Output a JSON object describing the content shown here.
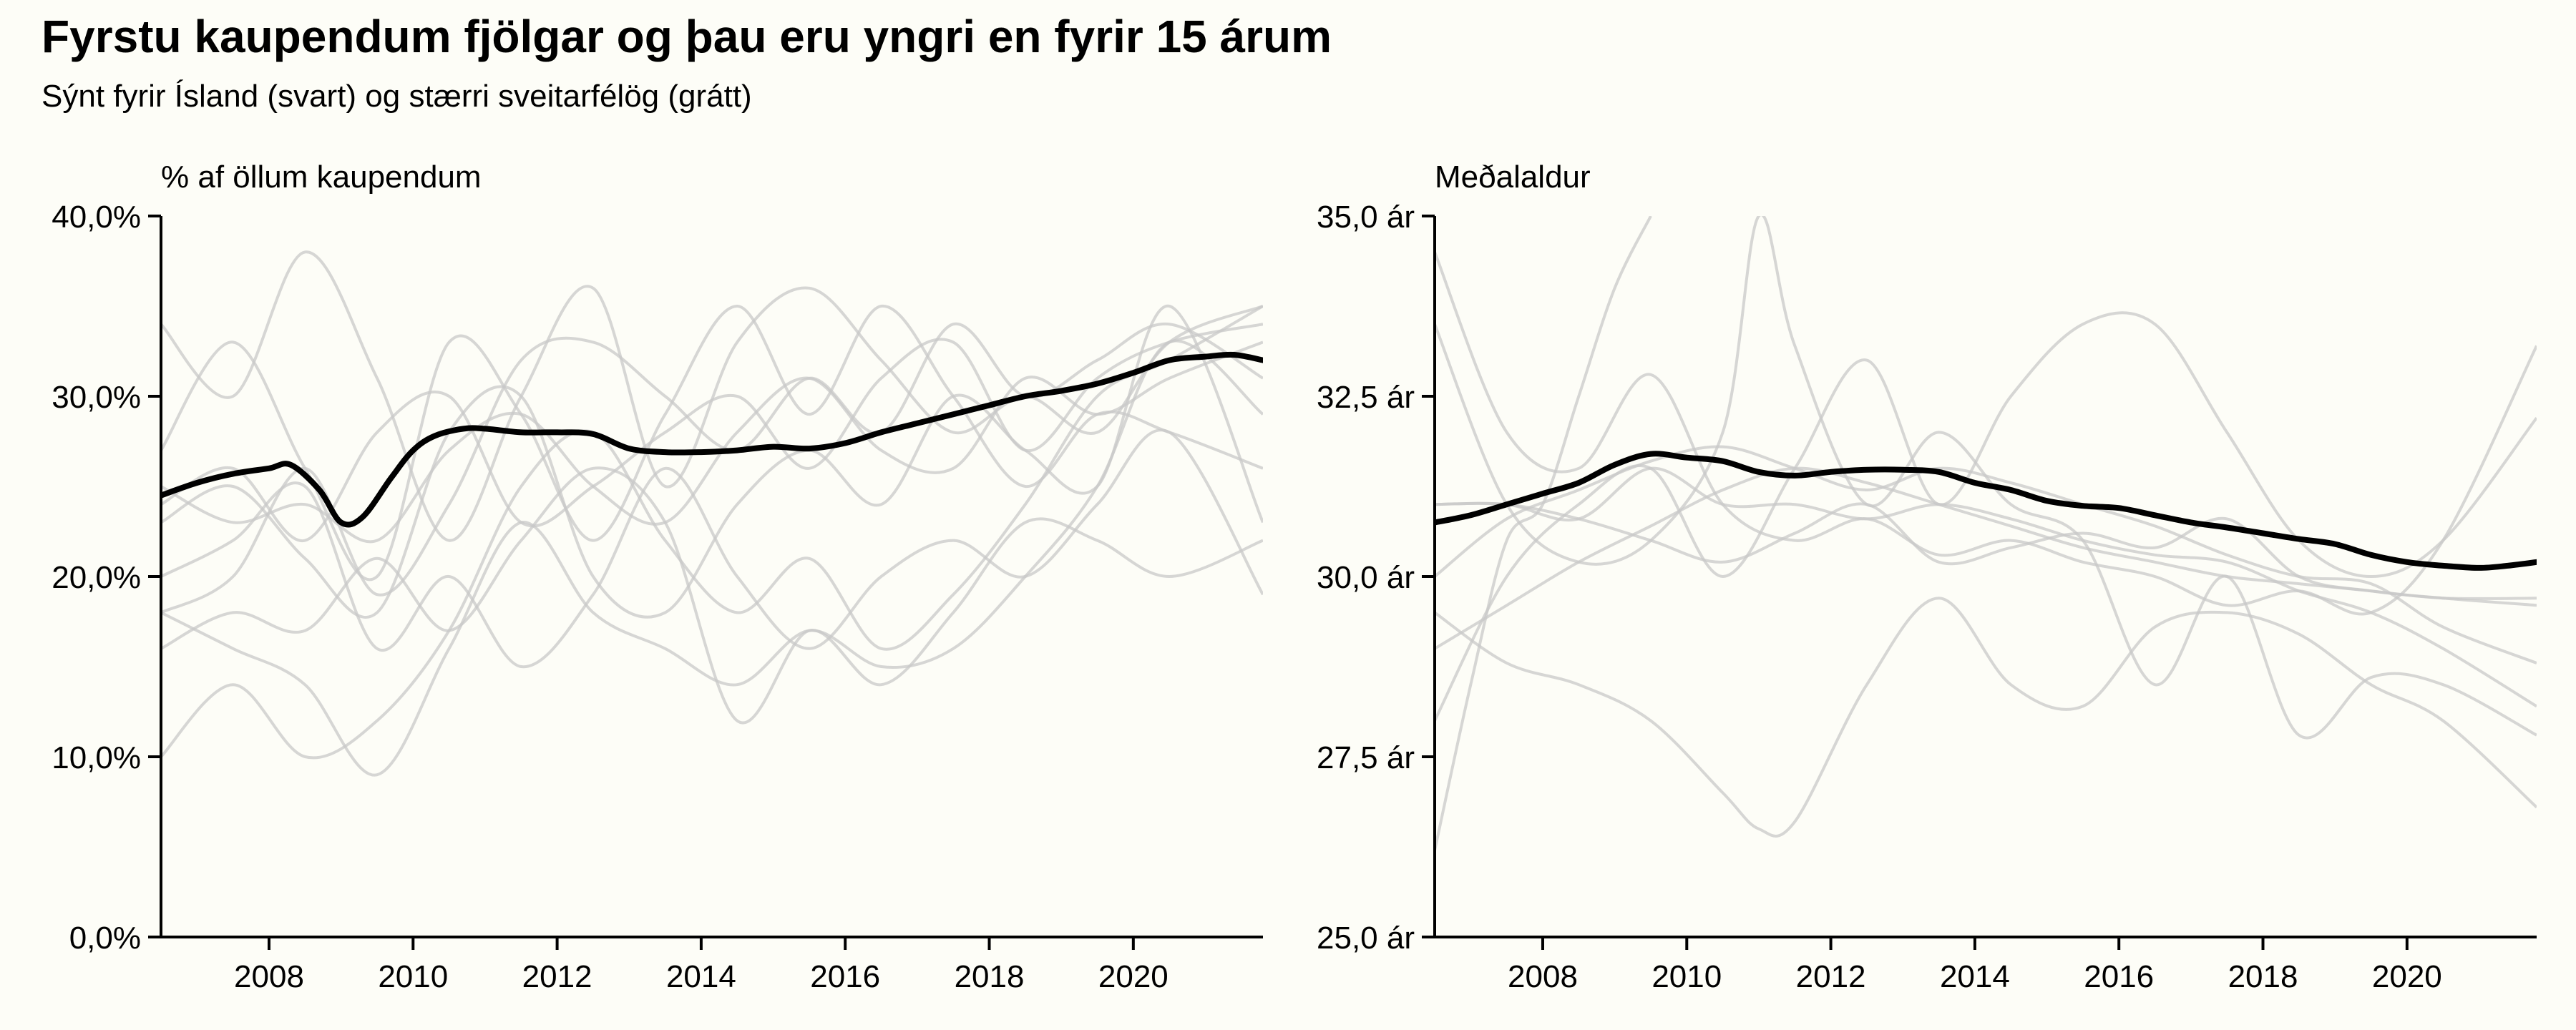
{
  "title": "Fyrstu kaupendum fjölgar og þau eru yngri en fyrir 15 árum",
  "subtitle": "Sýnt fyrir Ísland (svart) og stærri sveitarfélög (grátt)",
  "colors": {
    "highlight": "#000000",
    "context": "#c8c8c8",
    "background": "#fdfdf7"
  },
  "chart_data": [
    {
      "type": "line",
      "ylabel": "% af öllum kaupendum",
      "xlim": [
        2006.5,
        2021.8
      ],
      "ylim": [
        0,
        40
      ],
      "x_ticks": [
        2008,
        2010,
        2012,
        2014,
        2016,
        2018,
        2020
      ],
      "x_tick_labels": [
        "2008",
        "2010",
        "2012",
        "2014",
        "2016",
        "2018",
        "2020"
      ],
      "y_ticks": [
        0,
        10,
        20,
        30,
        40
      ],
      "y_tick_labels": [
        "0,0%",
        "10,0%",
        "20,0%",
        "30,0%",
        "40,0%"
      ],
      "grid": false,
      "highlight": {
        "x": [
          2006.5,
          2007.0,
          2007.5,
          2008.0,
          2008.3,
          2008.7,
          2009.0,
          2009.3,
          2009.7,
          2010.0,
          2010.3,
          2010.7,
          2011.0,
          2011.5,
          2012.0,
          2012.5,
          2013.0,
          2013.5,
          2014.0,
          2014.5,
          2015.0,
          2015.5,
          2016.0,
          2016.5,
          2017.0,
          2017.5,
          2018.0,
          2018.5,
          2019.0,
          2019.5,
          2020.0,
          2020.5,
          2021.0,
          2021.4,
          2021.8
        ],
        "y": [
          24.5,
          25.2,
          25.7,
          26.0,
          26.2,
          24.8,
          23.0,
          23.3,
          25.5,
          27.0,
          27.8,
          28.2,
          28.2,
          28.0,
          28.0,
          27.9,
          27.1,
          26.9,
          26.9,
          27.0,
          27.2,
          27.1,
          27.4,
          28.0,
          28.5,
          29.0,
          29.5,
          30.0,
          30.3,
          30.7,
          31.3,
          32.0,
          32.2,
          32.3,
          32.0
        ]
      },
      "context": [
        {
          "x": [
            2006.5,
            2007.5,
            2008.5,
            2009.5,
            2010.5,
            2011.5,
            2012.5,
            2013.5,
            2014.5,
            2015.5,
            2016.5,
            2017.5,
            2018.5,
            2019.5,
            2020.5,
            2021.8
          ],
          "y": [
            34,
            30,
            38,
            31,
            22,
            30,
            36,
            25,
            33,
            36,
            32,
            28,
            30,
            28,
            33,
            35
          ]
        },
        {
          "x": [
            2006.5,
            2007.5,
            2008.5,
            2009.5,
            2010.5,
            2011.5,
            2012.5,
            2013.5,
            2014.5,
            2015.5,
            2016.5,
            2017.5,
            2018.5,
            2019.5,
            2020.5,
            2021.8
          ],
          "y": [
            10,
            14,
            10,
            12,
            17,
            25,
            28,
            22,
            18,
            21,
            16,
            19,
            24,
            30,
            32,
            35
          ]
        },
        {
          "x": [
            2006.5,
            2007.5,
            2008.5,
            2009.5,
            2010.5,
            2011.5,
            2012.5,
            2013.5,
            2014.5,
            2015.5,
            2016.5,
            2017.5,
            2018.5,
            2019.5,
            2020.5,
            2021.8
          ],
          "y": [
            18,
            20,
            26,
            19,
            24,
            32,
            33,
            30,
            27,
            31,
            28,
            34,
            30,
            32,
            34,
            31
          ]
        },
        {
          "x": [
            2006.5,
            2007.5,
            2008.5,
            2009.5,
            2010.5,
            2011.5,
            2012.5,
            2013.5,
            2014.5,
            2015.5,
            2016.5,
            2017.5,
            2018.5,
            2019.5,
            2020.5,
            2021.8
          ],
          "y": [
            27,
            33,
            26,
            20,
            33,
            29,
            22,
            29,
            35,
            29,
            35,
            30,
            25,
            29,
            28,
            26
          ]
        },
        {
          "x": [
            2006.5,
            2007.5,
            2008.5,
            2009.5,
            2010.5,
            2011.5,
            2012.5,
            2013.5,
            2014.5,
            2015.5,
            2016.5,
            2017.5,
            2018.5,
            2019.5,
            2020.5,
            2021.8
          ],
          "y": [
            23,
            25,
            21,
            18,
            28,
            30,
            20,
            18,
            24,
            27,
            24,
            30,
            27,
            25,
            35,
            23
          ]
        },
        {
          "x": [
            2006.5,
            2007.5,
            2008.5,
            2009.5,
            2010.5,
            2011.5,
            2012.5,
            2013.5,
            2014.5,
            2015.5,
            2016.5,
            2017.5,
            2018.5,
            2019.5,
            2020.5,
            2021.8
          ],
          "y": [
            20,
            22,
            25,
            16,
            20,
            15,
            19,
            26,
            20,
            16,
            20,
            22,
            20,
            24,
            28,
            19
          ]
        },
        {
          "x": [
            2006.5,
            2007.5,
            2008.5,
            2009.5,
            2010.5,
            2011.5,
            2012.5,
            2013.5,
            2014.5,
            2015.5,
            2016.5,
            2017.5,
            2018.5,
            2019.5,
            2020.5,
            2021.8
          ],
          "y": [
            16,
            18,
            17,
            21,
            17,
            22,
            26,
            23,
            12,
            17,
            14,
            18,
            23,
            22,
            20,
            22
          ]
        },
        {
          "x": [
            2006.5,
            2007.5,
            2008.5,
            2009.5,
            2010.5,
            2011.5,
            2012.5,
            2013.5,
            2014.5,
            2015.5,
            2016.5,
            2017.5,
            2018.5,
            2019.5,
            2020.5,
            2021.8
          ],
          "y": [
            18,
            16,
            14,
            9,
            16,
            23,
            18,
            16,
            14,
            17,
            15,
            16,
            20,
            25,
            33,
            29
          ]
        },
        {
          "x": [
            2006.5,
            2007.5,
            2008.5,
            2009.5,
            2010.5,
            2011.5,
            2012.5,
            2013.5,
            2014.5,
            2015.5,
            2016.5,
            2017.5,
            2018.5,
            2019.5,
            2020.5,
            2021.8
          ],
          "y": [
            25,
            23,
            24,
            22,
            27,
            29,
            25,
            23,
            28,
            31,
            27,
            26,
            31,
            29,
            31,
            33
          ]
        },
        {
          "x": [
            2006.5,
            2007.5,
            2008.5,
            2009.5,
            2010.5,
            2011.5,
            2012.5,
            2013.5,
            2014.5,
            2015.5,
            2016.5,
            2017.5,
            2018.5,
            2019.5,
            2020.5,
            2021.8
          ],
          "y": [
            24,
            26,
            22,
            28,
            30,
            23,
            25,
            28,
            30,
            26,
            31,
            33,
            27,
            31,
            33,
            34
          ]
        }
      ]
    },
    {
      "type": "line",
      "ylabel": "Meðalaldur",
      "xlim": [
        2006.5,
        2021.8
      ],
      "ylim": [
        25,
        35
      ],
      "x_ticks": [
        2008,
        2010,
        2012,
        2014,
        2016,
        2018,
        2020
      ],
      "x_tick_labels": [
        "2008",
        "2010",
        "2012",
        "2014",
        "2016",
        "2018",
        "2020"
      ],
      "y_ticks": [
        25,
        27.5,
        30,
        32.5,
        35
      ],
      "y_tick_labels": [
        "25,0 ár",
        "27,5 ár",
        "30,0 ár",
        "32,5 ár",
        "35,0 ár"
      ],
      "grid": false,
      "highlight": {
        "x": [
          2006.5,
          2007.0,
          2007.5,
          2008.0,
          2008.5,
          2009.0,
          2009.5,
          2010.0,
          2010.5,
          2011.0,
          2011.5,
          2012.0,
          2012.5,
          2013.0,
          2013.5,
          2014.0,
          2014.5,
          2015.0,
          2015.5,
          2016.0,
          2016.5,
          2017.0,
          2017.5,
          2018.0,
          2018.5,
          2019.0,
          2019.5,
          2020.0,
          2020.5,
          2021.0,
          2021.4,
          2021.8
        ],
        "y": [
          30.75,
          30.85,
          31.0,
          31.15,
          31.3,
          31.55,
          31.7,
          31.65,
          31.6,
          31.45,
          31.4,
          31.45,
          31.48,
          31.48,
          31.45,
          31.3,
          31.2,
          31.05,
          30.98,
          30.95,
          30.85,
          30.75,
          30.68,
          30.6,
          30.52,
          30.45,
          30.3,
          30.2,
          30.15,
          30.12,
          30.15,
          30.2
        ]
      },
      "context": [
        {
          "x": [
            2006.5,
            2007.0,
            2007.5,
            2008.0,
            2008.5,
            2009.0,
            2009.5
          ],
          "y": [
            26.2,
            28.5,
            30.5,
            31.0,
            32.5,
            34.0,
            35.0
          ]
        },
        {
          "x": [
            2006.5,
            2007.5,
            2008.5,
            2009.5,
            2010.5,
            2011.5,
            2012.5,
            2013.5,
            2014.5,
            2015.5,
            2016.5,
            2017.5,
            2018.5,
            2019.5,
            2020.5,
            2021.8
          ],
          "y": [
            34.5,
            32.0,
            31.5,
            32.8,
            31.0,
            30.5,
            30.8,
            30.3,
            30.5,
            30.2,
            30.0,
            29.6,
            29.8,
            29.5,
            30.5,
            33.2
          ]
        },
        {
          "x": [
            2006.5,
            2007.5,
            2008.5,
            2009.5,
            2010.5,
            2011.5,
            2012.5,
            2013.5,
            2014.5,
            2015.5,
            2016.5,
            2017.5,
            2018.5,
            2019.5,
            2020.5,
            2021.8
          ],
          "y": [
            28.0,
            30.0,
            31.0,
            31.5,
            30.0,
            31.5,
            33.0,
            31.0,
            32.5,
            33.5,
            33.5,
            32.0,
            30.5,
            30.0,
            30.5,
            32.2
          ]
        },
        {
          "x": [
            2006.5,
            2007.5,
            2008.5,
            2009.5,
            2010.5,
            2011.0,
            2011.5,
            2012.5,
            2013.5,
            2014.5,
            2015.5,
            2016.5,
            2017.5,
            2018.5,
            2019.5,
            2020.5,
            2021.8
          ],
          "y": [
            29.5,
            28.8,
            28.5,
            28.0,
            27.0,
            26.5,
            26.6,
            28.5,
            29.7,
            28.5,
            28.2,
            29.3,
            29.5,
            29.2,
            28.5,
            28.0,
            26.8
          ]
        },
        {
          "x": [
            2006.5,
            2007.5,
            2008.5,
            2009.5,
            2010.5,
            2011.0,
            2011.5,
            2012.5,
            2013.5,
            2014.5,
            2015.5,
            2016.5,
            2017.5,
            2018.5,
            2019.5,
            2020.5,
            2021.8
          ],
          "y": [
            33.5,
            31.0,
            30.2,
            30.5,
            32.0,
            35.0,
            33.2,
            31.0,
            32.0,
            31.0,
            30.5,
            28.5,
            30.0,
            27.8,
            28.6,
            28.5,
            27.8
          ]
        },
        {
          "x": [
            2006.5,
            2007.5,
            2008.5,
            2009.5,
            2010.5,
            2011.5,
            2012.5,
            2013.5,
            2014.5,
            2015.5,
            2016.5,
            2017.5,
            2018.5,
            2019.5,
            2020.5,
            2021.8
          ],
          "y": [
            31.0,
            31.0,
            30.8,
            30.5,
            30.2,
            30.6,
            31.0,
            30.2,
            30.4,
            30.6,
            30.4,
            30.8,
            30.0,
            29.8,
            29.7,
            29.6
          ]
        },
        {
          "x": [
            2006.5,
            2007.5,
            2008.5,
            2009.5,
            2010.5,
            2011.5,
            2012.5,
            2013.5,
            2014.5,
            2015.5,
            2016.5,
            2017.5,
            2018.5,
            2019.5,
            2020.5,
            2021.8
          ],
          "y": [
            29.0,
            29.6,
            30.2,
            30.7,
            31.2,
            31.5,
            31.3,
            31.0,
            30.7,
            30.4,
            30.2,
            30.0,
            29.9,
            29.8,
            29.7,
            29.7
          ]
        },
        {
          "x": [
            2006.5,
            2007.5,
            2008.5,
            2009.5,
            2010.5,
            2011.5,
            2012.5,
            2013.5,
            2014.5,
            2015.5,
            2016.5,
            2017.5,
            2018.5,
            2019.5,
            2020.5,
            2021.8
          ],
          "y": [
            30.0,
            30.8,
            31.2,
            31.6,
            31.8,
            31.5,
            31.2,
            31.5,
            31.3,
            31.0,
            30.7,
            30.3,
            30.0,
            29.9,
            29.3,
            28.8
          ]
        },
        {
          "x": [
            2006.5,
            2007.5,
            2008.5,
            2009.5,
            2010.5,
            2011.5,
            2012.5,
            2013.5,
            2014.5,
            2015.5,
            2016.5,
            2017.5,
            2018.5,
            2019.5,
            2020.5,
            2021.8
          ],
          "y": [
            31.0,
            31.0,
            30.8,
            31.5,
            31.0,
            31.0,
            30.8,
            31.0,
            30.8,
            30.5,
            30.3,
            30.2,
            29.8,
            29.5,
            29.0,
            28.2
          ]
        }
      ]
    }
  ]
}
